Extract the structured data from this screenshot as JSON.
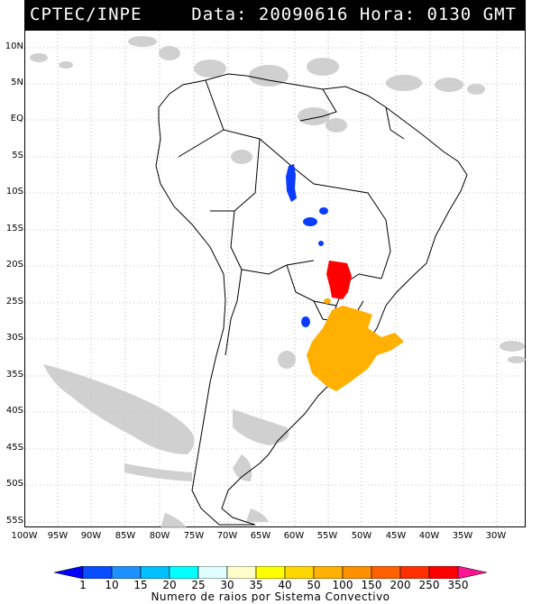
{
  "header": {
    "left": "CPTEC/INPE",
    "right": "Data: 20090616 Hora: 0130 GMT"
  },
  "lat_labels": [
    "10N",
    "5N",
    "EQ",
    "5S",
    "10S",
    "15S",
    "20S",
    "25S",
    "30S",
    "35S",
    "40S",
    "45S",
    "50S",
    "55S"
  ],
  "lon_labels": [
    "100W",
    "95W",
    "90W",
    "85W",
    "80W",
    "75W",
    "70W",
    "65W",
    "60W",
    "55W",
    "50W",
    "45W",
    "40W",
    "35W",
    "30W"
  ],
  "colorbar": {
    "labels": [
      "1",
      "10",
      "15",
      "20",
      "25",
      "30",
      "35",
      "40",
      "50",
      "100",
      "150",
      "200",
      "250",
      "350"
    ],
    "colors": [
      "#0000ff",
      "#0a4cff",
      "#1e90ff",
      "#00bfff",
      "#00ffff",
      "#e0ffff",
      "#ffffcc",
      "#ffff00",
      "#ffd700",
      "#ffb000",
      "#ff9000",
      "#ff6000",
      "#ff3000",
      "#ff0000",
      "#ff1493"
    ],
    "title": "Numero de raios por Sistema Convectivo"
  },
  "colors": {
    "cloud": "#c8c8c8",
    "coast": "#000000",
    "cell_blue": "#0a3cff",
    "cell_red": "#ff0000",
    "cell_orange": "#ffb000"
  }
}
